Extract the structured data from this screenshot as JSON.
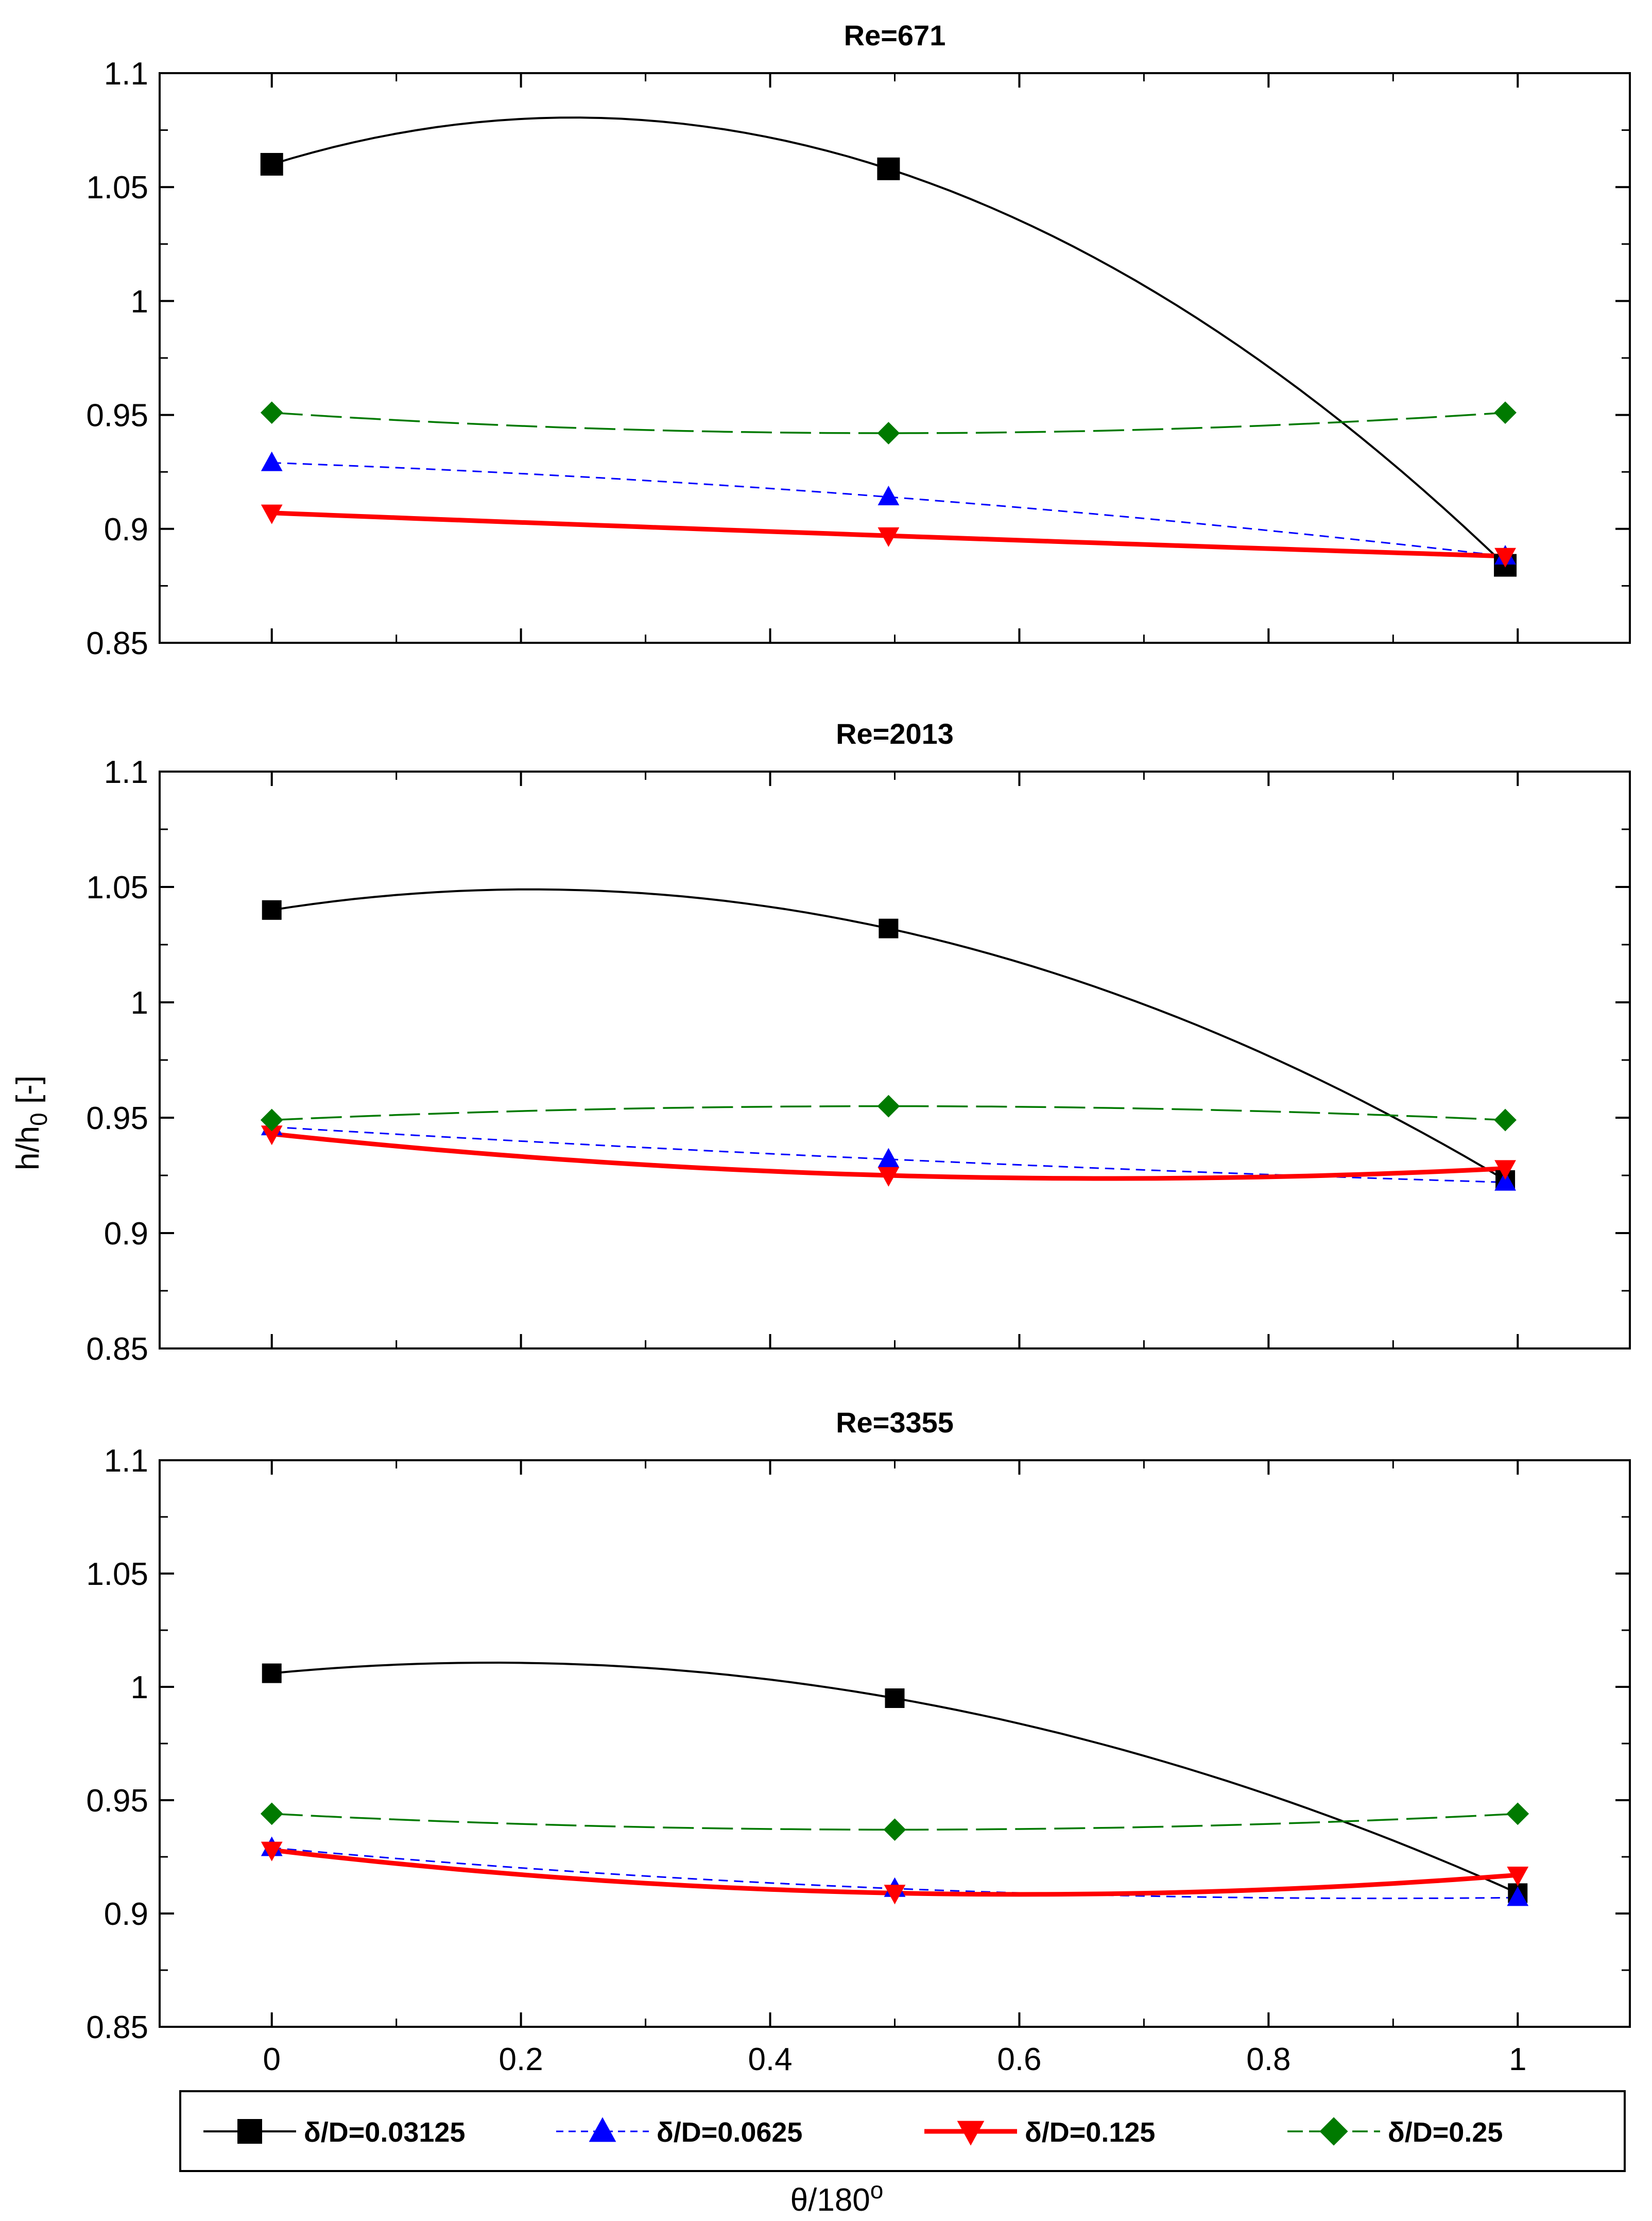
{
  "chart_data": [
    {
      "type": "line",
      "title": "Re=671",
      "xlabel": "",
      "ylabel": "",
      "xlim": [
        -0.09,
        1.09
      ],
      "ylim": [
        0.85,
        1.1
      ],
      "x_ticks": [
        "0",
        "0.2",
        "0.4",
        "0.6",
        "0.8",
        "1"
      ],
      "y_ticks": [
        "0.85",
        "0.9",
        "0.95",
        "1",
        "1.05",
        "1.1"
      ],
      "x": [
        0,
        0.495,
        0.99
      ],
      "series": [
        {
          "name": "δ/D=0.03125",
          "values": [
            1.06,
            1.058,
            0.884
          ]
        },
        {
          "name": "δ/D=0.0625",
          "values": [
            0.929,
            0.914,
            0.888
          ]
        },
        {
          "name": "δ/D=0.125",
          "values": [
            0.907,
            0.897,
            0.888
          ]
        },
        {
          "name": "δ/D=0.25",
          "values": [
            0.951,
            0.942,
            0.951
          ]
        }
      ]
    },
    {
      "type": "line",
      "title": "Re=2013",
      "xlabel": "",
      "ylabel": "h/h0 [-]",
      "xlim": [
        -0.09,
        1.09
      ],
      "ylim": [
        0.85,
        1.1
      ],
      "x_ticks": [
        "0",
        "0.2",
        "0.4",
        "0.6",
        "0.8",
        "1"
      ],
      "y_ticks": [
        "0.85",
        "0.9",
        "0.95",
        "1",
        "1.05",
        "1.1"
      ],
      "x": [
        0,
        0.495,
        0.99
      ],
      "series": [
        {
          "name": "δ/D=0.03125",
          "values": [
            1.04,
            1.032,
            0.923
          ]
        },
        {
          "name": "δ/D=0.0625",
          "values": [
            0.946,
            0.932,
            0.922
          ]
        },
        {
          "name": "δ/D=0.125",
          "values": [
            0.943,
            0.925,
            0.928
          ]
        },
        {
          "name": "δ/D=0.25",
          "values": [
            0.949,
            0.955,
            0.949
          ]
        }
      ]
    },
    {
      "type": "line",
      "title": "Re=3355",
      "xlabel": "θ/180o",
      "ylabel": "",
      "xlim": [
        -0.09,
        1.09
      ],
      "ylim": [
        0.85,
        1.1
      ],
      "x_ticks": [
        "0",
        "0.2",
        "0.4",
        "0.6",
        "0.8",
        "1"
      ],
      "y_ticks": [
        "0.85",
        "0.9",
        "0.95",
        "1",
        "1.05",
        "1.1"
      ],
      "x": [
        0,
        0.5,
        1
      ],
      "series": [
        {
          "name": "δ/D=0.03125",
          "values": [
            1.006,
            0.995,
            0.909
          ]
        },
        {
          "name": "δ/D=0.0625",
          "values": [
            0.929,
            0.911,
            0.907
          ]
        },
        {
          "name": "δ/D=0.125",
          "values": [
            0.928,
            0.909,
            0.917
          ]
        },
        {
          "name": "δ/D=0.25",
          "values": [
            0.944,
            0.937,
            0.944
          ]
        }
      ]
    }
  ],
  "legend": {
    "placement": "bottom",
    "items": [
      {
        "label": "δ/D=0.03125",
        "color": "#000000",
        "marker": "square",
        "dash": "solid"
      },
      {
        "label": "δ/D=0.0625",
        "color": "#0000ff",
        "marker": "triangle-up",
        "dash": "short-dash"
      },
      {
        "label": "δ/D=0.125",
        "color": "#ff0000",
        "marker": "triangle-down",
        "dash": "solid-thick"
      },
      {
        "label": "δ/D=0.25",
        "color": "#007a00",
        "marker": "diamond",
        "dash": "long-dash"
      }
    ]
  },
  "shared_ylabel": {
    "main": "h/h",
    "sub": "0",
    "tail": " [-]"
  },
  "shared_xlabel": {
    "main": "θ/180",
    "sup": "o"
  }
}
